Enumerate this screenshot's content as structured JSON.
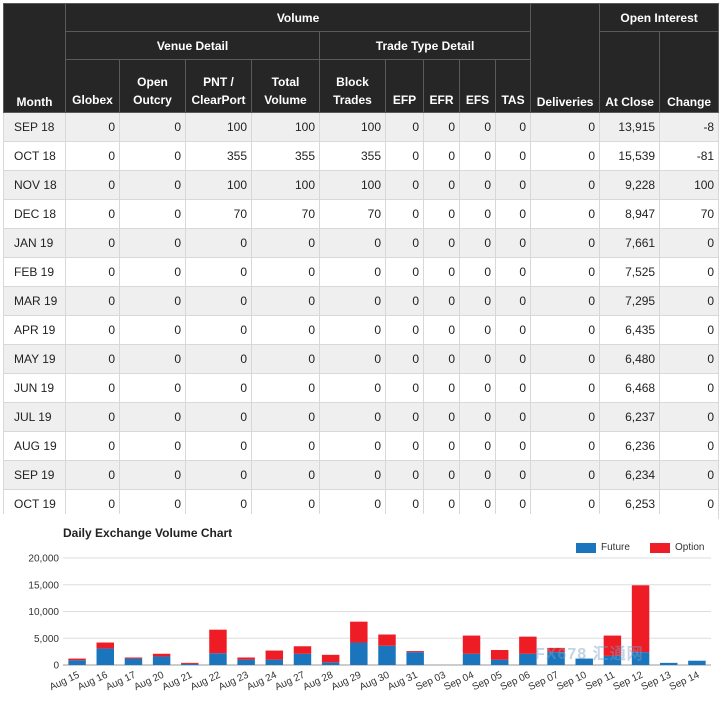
{
  "table": {
    "headers": {
      "volume": "Volume",
      "open_interest": "Open Interest",
      "venue_detail": "Venue Detail",
      "trade_type_detail": "Trade Type Detail",
      "month": "Month",
      "globex": "Globex",
      "open_outcry_1": "Open",
      "open_outcry_2": "Outcry",
      "pnt_1": "PNT /",
      "pnt_2": "ClearPort",
      "total_1": "Total",
      "total_2": "Volume",
      "block_1": "Block",
      "block_2": "Trades",
      "efp": "EFP",
      "efr": "EFR",
      "efs": "EFS",
      "tas": "TAS",
      "deliveries": "Deliveries",
      "at_close": "At Close",
      "change": "Change"
    },
    "rows": [
      [
        "SEP 18",
        "0",
        "0",
        "100",
        "100",
        "100",
        "0",
        "0",
        "0",
        "0",
        "0",
        "13,915",
        "-8"
      ],
      [
        "OCT 18",
        "0",
        "0",
        "355",
        "355",
        "355",
        "0",
        "0",
        "0",
        "0",
        "0",
        "15,539",
        "-81"
      ],
      [
        "NOV 18",
        "0",
        "0",
        "100",
        "100",
        "100",
        "0",
        "0",
        "0",
        "0",
        "0",
        "9,228",
        "100"
      ],
      [
        "DEC 18",
        "0",
        "0",
        "70",
        "70",
        "70",
        "0",
        "0",
        "0",
        "0",
        "0",
        "8,947",
        "70"
      ],
      [
        "JAN 19",
        "0",
        "0",
        "0",
        "0",
        "0",
        "0",
        "0",
        "0",
        "0",
        "0",
        "7,661",
        "0"
      ],
      [
        "FEB 19",
        "0",
        "0",
        "0",
        "0",
        "0",
        "0",
        "0",
        "0",
        "0",
        "0",
        "7,525",
        "0"
      ],
      [
        "MAR 19",
        "0",
        "0",
        "0",
        "0",
        "0",
        "0",
        "0",
        "0",
        "0",
        "0",
        "7,295",
        "0"
      ],
      [
        "APR 19",
        "0",
        "0",
        "0",
        "0",
        "0",
        "0",
        "0",
        "0",
        "0",
        "0",
        "6,435",
        "0"
      ],
      [
        "MAY 19",
        "0",
        "0",
        "0",
        "0",
        "0",
        "0",
        "0",
        "0",
        "0",
        "0",
        "6,480",
        "0"
      ],
      [
        "JUN 19",
        "0",
        "0",
        "0",
        "0",
        "0",
        "0",
        "0",
        "0",
        "0",
        "0",
        "6,468",
        "0"
      ],
      [
        "JUL 19",
        "0",
        "0",
        "0",
        "0",
        "0",
        "0",
        "0",
        "0",
        "0",
        "0",
        "6,237",
        "0"
      ],
      [
        "AUG 19",
        "0",
        "0",
        "0",
        "0",
        "0",
        "0",
        "0",
        "0",
        "0",
        "0",
        "6,236",
        "0"
      ],
      [
        "SEP 19",
        "0",
        "0",
        "0",
        "0",
        "0",
        "0",
        "0",
        "0",
        "0",
        "0",
        "6,234",
        "0"
      ],
      [
        "OCT 19",
        "0",
        "0",
        "0",
        "0",
        "0",
        "0",
        "0",
        "0",
        "0",
        "0",
        "6,253",
        "0"
      ]
    ]
  },
  "chart_data": {
    "type": "bar",
    "stacked": true,
    "title": "Daily Exchange Volume Chart",
    "xlabel": "",
    "ylabel": "",
    "ylim": [
      0,
      20000
    ],
    "yticks": [
      "0",
      "5,000",
      "10,000",
      "15,000",
      "20,000"
    ],
    "ytick_values": [
      0,
      5000,
      10000,
      15000,
      20000
    ],
    "grid": true,
    "legend_position": "top-right",
    "categories": [
      "Aug 15",
      "Aug 16",
      "Aug 17",
      "Aug 20",
      "Aug 21",
      "Aug 22",
      "Aug 23",
      "Aug 24",
      "Aug 27",
      "Aug 28",
      "Aug 29",
      "Aug 30",
      "Aug 31",
      "Sep 03",
      "Sep 04",
      "Sep 05",
      "Sep 06",
      "Sep 07",
      "Sep 10",
      "Sep 11",
      "Sep 12",
      "Sep 13",
      "Sep 14"
    ],
    "series": [
      {
        "name": "Future",
        "color": "#1a75bc",
        "values": [
          900,
          3100,
          1200,
          1600,
          200,
          2200,
          1000,
          1000,
          2100,
          500,
          4200,
          3600,
          2400,
          0,
          2100,
          1000,
          2100,
          2400,
          1200,
          1700,
          2400,
          400,
          800
        ]
      },
      {
        "name": "Option",
        "color": "#ee1c25",
        "values": [
          300,
          1100,
          200,
          500,
          200,
          4400,
          400,
          1700,
          1400,
          1400,
          3900,
          2100,
          200,
          0,
          3400,
          1800,
          3200,
          800,
          0,
          3800,
          12500,
          0,
          0
        ]
      }
    ]
  },
  "watermark": "FX678 汇通网"
}
